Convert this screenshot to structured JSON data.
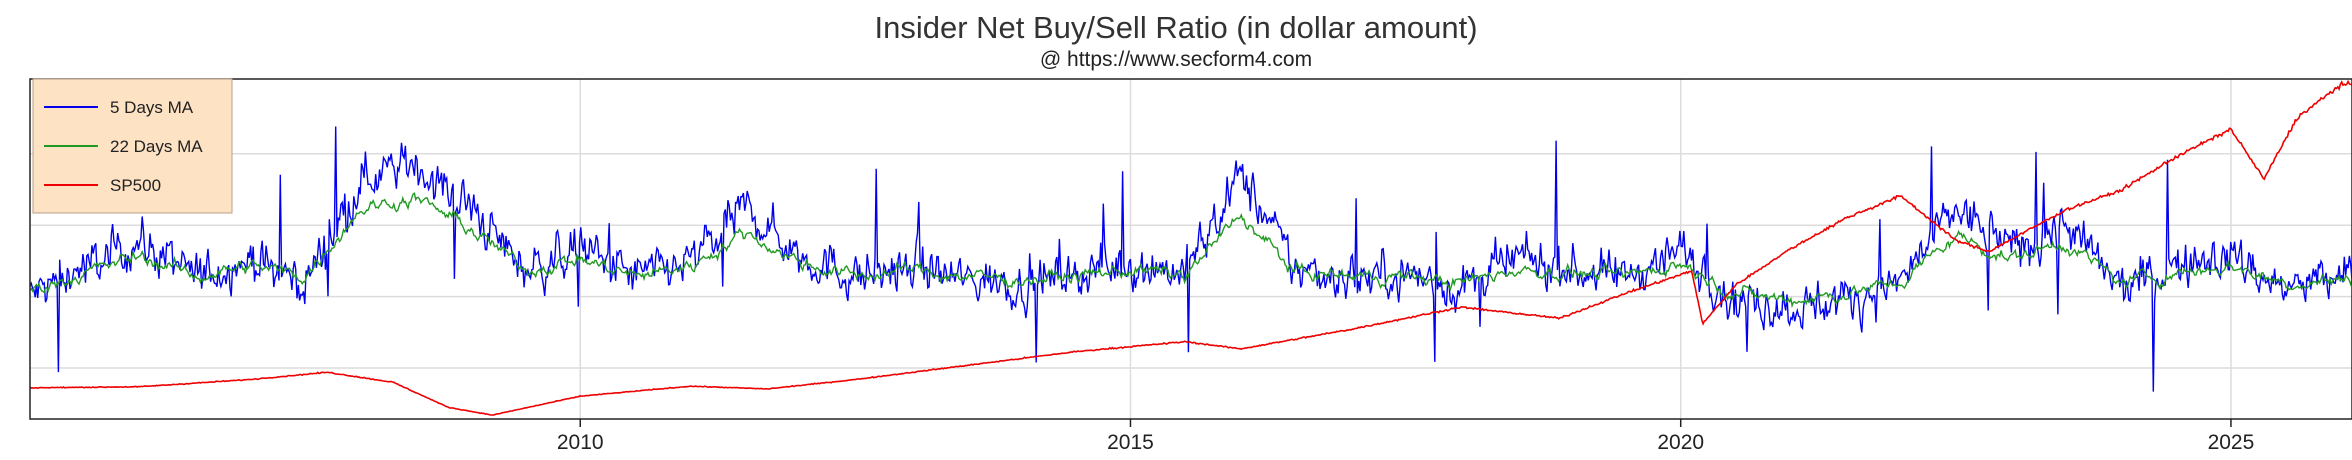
{
  "chart_data": {
    "type": "line",
    "title": "Insider Net Buy/Sell Ratio (in dollar amount)",
    "subtitle": "@ https://www.secform4.com",
    "xlabel": "",
    "ylabel": "",
    "x_tick_labels": [
      "2010",
      "2015",
      "2020",
      "2025"
    ],
    "x_tick_values": [
      2010,
      2015,
      2020,
      2025
    ],
    "xlim": [
      2005.0,
      2026.1
    ],
    "grid": true,
    "legend_position": "top-left",
    "series": [
      {
        "name": "5 Days MA",
        "color": "#0000ee",
        "x": [
          2005.0,
          2005.5,
          2006.0,
          2006.5,
          2007.0,
          2007.5,
          2008.0,
          2008.5,
          2009.0,
          2009.5,
          2010.0,
          2010.5,
          2011.0,
          2011.5,
          2012.0,
          2012.5,
          2013.0,
          2013.5,
          2014.0,
          2014.5,
          2015.0,
          2015.5,
          2016.0,
          2016.5,
          2017.0,
          2017.5,
          2018.0,
          2018.5,
          2019.0,
          2019.5,
          2020.0,
          2020.5,
          2021.0,
          2021.5,
          2022.0,
          2022.5,
          2023.0,
          2023.5,
          2024.0,
          2024.5,
          2025.0,
          2025.5,
          2026.0
        ],
        "y": [
          0.36,
          0.45,
          0.52,
          0.42,
          0.47,
          0.4,
          0.71,
          0.75,
          0.62,
          0.44,
          0.5,
          0.42,
          0.46,
          0.62,
          0.48,
          0.42,
          0.45,
          0.41,
          0.4,
          0.43,
          0.46,
          0.43,
          0.72,
          0.44,
          0.42,
          0.43,
          0.38,
          0.47,
          0.44,
          0.42,
          0.5,
          0.35,
          0.33,
          0.35,
          0.4,
          0.62,
          0.5,
          0.57,
          0.38,
          0.45,
          0.48,
          0.38,
          0.42
        ]
      },
      {
        "name": "22 Days MA",
        "color": "#229922",
        "x": [
          2005.0,
          2005.5,
          2006.0,
          2006.5,
          2007.0,
          2007.5,
          2008.0,
          2008.5,
          2009.0,
          2009.5,
          2010.0,
          2010.5,
          2011.0,
          2011.5,
          2012.0,
          2012.5,
          2013.0,
          2013.5,
          2014.0,
          2014.5,
          2015.0,
          2015.5,
          2016.0,
          2016.5,
          2017.0,
          2017.5,
          2018.0,
          2018.5,
          2019.0,
          2019.5,
          2020.0,
          2020.5,
          2021.0,
          2021.5,
          2022.0,
          2022.5,
          2023.0,
          2023.5,
          2024.0,
          2024.5,
          2025.0,
          2025.5,
          2026.0
        ],
        "y": [
          0.38,
          0.43,
          0.48,
          0.42,
          0.45,
          0.42,
          0.62,
          0.65,
          0.56,
          0.44,
          0.47,
          0.42,
          0.45,
          0.55,
          0.46,
          0.42,
          0.44,
          0.42,
          0.41,
          0.42,
          0.44,
          0.42,
          0.6,
          0.43,
          0.42,
          0.42,
          0.4,
          0.44,
          0.43,
          0.42,
          0.46,
          0.37,
          0.35,
          0.37,
          0.4,
          0.54,
          0.47,
          0.52,
          0.4,
          0.43,
          0.45,
          0.4,
          0.41
        ]
      },
      {
        "name": "SP500",
        "color": "#ee0000",
        "x": [
          2005.0,
          2006.0,
          2007.0,
          2007.7,
          2008.3,
          2008.8,
          2009.2,
          2010.0,
          2011.0,
          2011.7,
          2012.5,
          2013.5,
          2014.5,
          2015.5,
          2016.0,
          2017.0,
          2018.0,
          2018.9,
          2019.5,
          2020.1,
          2020.2,
          2020.5,
          2021.0,
          2021.5,
          2022.0,
          2022.5,
          2022.8,
          2023.5,
          2024.0,
          2024.5,
          2025.0,
          2025.3,
          2025.6,
          2026.0
        ],
        "y": [
          1250,
          1270,
          1400,
          1530,
          1350,
          900,
          760,
          1100,
          1280,
          1230,
          1400,
          1650,
          1900,
          2080,
          1950,
          2300,
          2700,
          2500,
          2950,
          3350,
          2400,
          3100,
          3750,
          4300,
          4700,
          3900,
          3700,
          4450,
          4800,
          5400,
          5900,
          5000,
          6100,
          6700
        ]
      }
    ]
  }
}
